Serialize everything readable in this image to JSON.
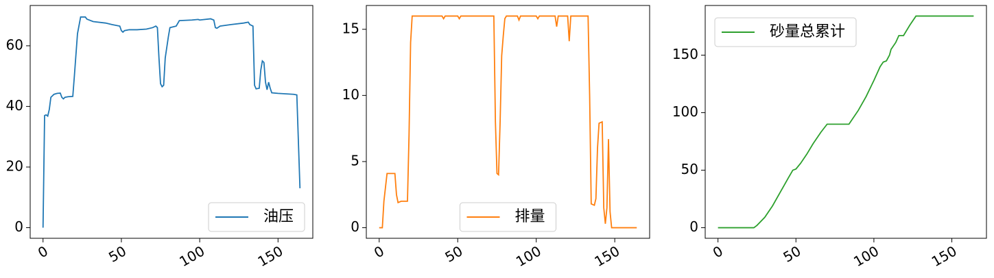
{
  "chart_data": [
    {
      "type": "line",
      "legend": "lower right",
      "x": [
        0,
        1,
        2,
        3,
        4,
        5,
        7,
        9,
        11,
        12,
        13,
        14,
        16,
        19,
        20,
        22,
        24,
        27,
        28,
        32,
        40,
        44,
        49,
        50,
        51,
        52,
        55,
        60,
        66,
        70,
        72,
        73,
        74,
        75,
        76,
        77,
        78,
        80,
        81,
        85,
        87,
        95,
        99,
        100,
        107,
        109,
        110,
        111,
        113,
        120,
        128,
        131,
        132,
        134,
        135,
        136,
        138,
        139,
        140,
        141,
        142,
        143,
        144,
        145,
        146,
        150,
        160,
        162,
        164
      ],
      "series": [
        {
          "name": "油压",
          "color": "#1f77b4",
          "values": [
            0,
            37,
            37.2,
            36.8,
            39,
            43,
            44,
            44.3,
            44.4,
            43,
            42.5,
            43,
            43.2,
            43.3,
            50,
            64,
            69.5,
            69.5,
            68.8,
            68,
            67.5,
            67,
            66.5,
            65,
            64.5,
            65,
            65.3,
            65.3,
            65.5,
            66,
            66.5,
            66,
            56,
            47.5,
            46.5,
            47,
            56,
            63,
            66,
            66.5,
            68.3,
            68.5,
            68.7,
            68.5,
            68.9,
            68.5,
            66,
            65.8,
            66.5,
            67,
            67.5,
            67.8,
            67,
            66.5,
            47,
            45.8,
            46,
            52,
            55,
            54.5,
            48,
            45.5,
            48,
            46,
            44.5,
            44.3,
            44,
            43.8,
            13
          ]
        }
      ],
      "xlim": [
        -8.2,
        172.2
      ],
      "ylim": [
        -3.5,
        73.3
      ],
      "xticks": [
        0,
        50,
        100,
        150
      ],
      "yticks": [
        0,
        20,
        40,
        60
      ]
    },
    {
      "type": "line",
      "legend": "lower center",
      "x": [
        0,
        2,
        3,
        5,
        10,
        11,
        12,
        14,
        18,
        19,
        20,
        21,
        30,
        40,
        41,
        42,
        50,
        51,
        52,
        73,
        74,
        75,
        76,
        77,
        78,
        79,
        80,
        81,
        88,
        89,
        90,
        100,
        101,
        102,
        112,
        113,
        114,
        120,
        121,
        122,
        133,
        134,
        135,
        137,
        138,
        139,
        140,
        142,
        143,
        144,
        145,
        146,
        147,
        148,
        164
      ],
      "series": [
        {
          "name": "排量",
          "color": "#ff7f0e",
          "values": [
            0,
            0,
            2,
            4.1,
            4.1,
            2.5,
            1.9,
            2,
            2,
            7,
            14,
            16,
            16,
            16,
            15.8,
            16,
            16,
            15.8,
            16,
            16,
            8,
            4.1,
            4,
            8,
            13,
            14.5,
            15.8,
            16,
            16,
            15.7,
            16,
            16,
            15.8,
            16,
            16,
            15.2,
            16,
            16,
            14.1,
            16,
            16,
            10,
            1.8,
            1.7,
            2.2,
            6,
            7.9,
            8,
            1.5,
            0.3,
            1.5,
            6.7,
            1.2,
            0,
            0
          ]
        }
      ],
      "xlim": [
        -8.2,
        172.2
      ],
      "ylim": [
        -0.8,
        16.8
      ],
      "xticks": [
        0,
        50,
        100,
        150
      ],
      "yticks": [
        0,
        5,
        10,
        15
      ]
    },
    {
      "type": "line",
      "legend": "upper left",
      "x": [
        0,
        23,
        25,
        30,
        35,
        40,
        45,
        48,
        50,
        53,
        57,
        61,
        66,
        70,
        84,
        86,
        90,
        95,
        100,
        104,
        106,
        108,
        110,
        111,
        114,
        116,
        119,
        123,
        127,
        164
      ],
      "series": [
        {
          "name": "砂量总累计",
          "color": "#2ca02c",
          "values": [
            0,
            0,
            2,
            9,
            19,
            31,
            43,
            50,
            51,
            56,
            64,
            73,
            83,
            90,
            90,
            94,
            102,
            114,
            128,
            140,
            144,
            145,
            150,
            155,
            161,
            167,
            167,
            176,
            184,
            184
          ]
        }
      ],
      "xlim": [
        -8.2,
        172.2
      ],
      "ylim": [
        -9.2,
        193.2
      ],
      "xticks": [
        0,
        50,
        100,
        150
      ],
      "yticks": [
        0,
        50,
        100,
        150
      ]
    }
  ]
}
